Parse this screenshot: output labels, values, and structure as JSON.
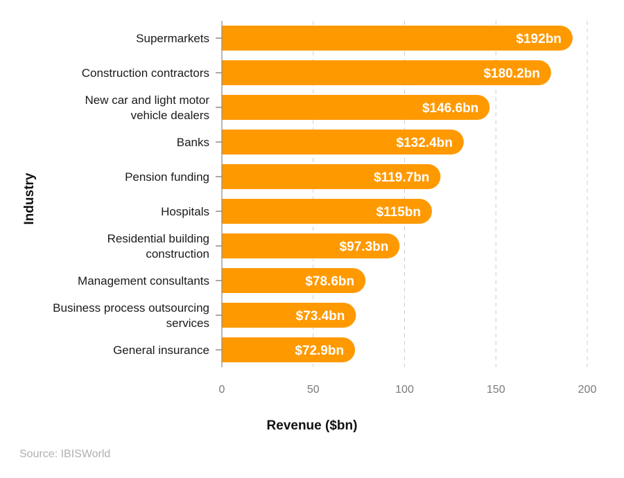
{
  "chart_data": {
    "type": "bar",
    "orientation": "horizontal",
    "title": "",
    "xlabel": "Revenue ($bn)",
    "ylabel": "Industry",
    "xlim": [
      0,
      200
    ],
    "xticks": [
      0,
      50,
      100,
      150,
      200
    ],
    "grid": "vertical dashed",
    "categories": [
      [
        "Supermarkets"
      ],
      [
        "Construction contractors"
      ],
      [
        "New car and light motor",
        "vehicle dealers"
      ],
      [
        "Banks"
      ],
      [
        "Pension funding"
      ],
      [
        "Hospitals"
      ],
      [
        "Residential building",
        "construction"
      ],
      [
        "Management consultants"
      ],
      [
        "Business process outsourcing",
        "services"
      ],
      [
        "General insurance"
      ]
    ],
    "values": [
      192,
      180.2,
      146.6,
      132.4,
      119.7,
      115,
      97.3,
      78.6,
      73.4,
      72.9
    ],
    "data_labels": [
      "$192bn",
      "$180.2bn",
      "$146.6bn",
      "$132.4bn",
      "$119.7bn",
      "$115bn",
      "$97.3bn",
      "$78.6bn",
      "$73.4bn",
      "$72.9bn"
    ],
    "bar_color": "#FF9900"
  },
  "source": "Source: IBISWorld"
}
